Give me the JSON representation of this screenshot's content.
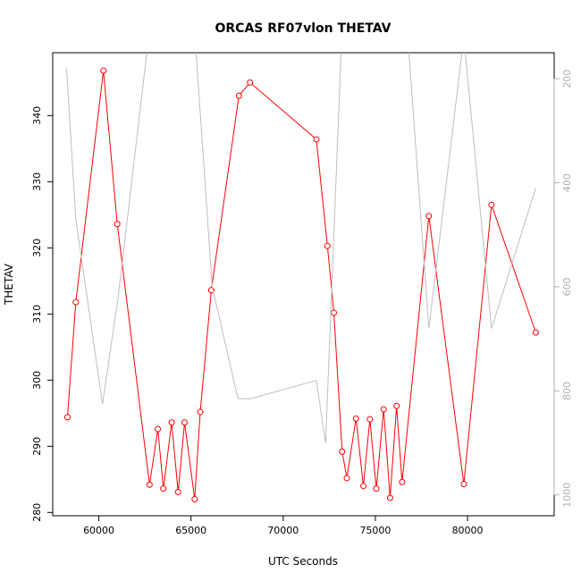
{
  "chart_data": {
    "type": "line",
    "title": "ORCAS RF07vlon THETAV",
    "xlabel": "UTC Seconds",
    "ylabel": "THETAV",
    "xlim": [
      57500,
      84700
    ],
    "ylim": [
      279.5,
      349.5
    ],
    "y2lim": [
      1040,
      150
    ],
    "x_ticks": [
      60000,
      65000,
      70000,
      75000,
      80000
    ],
    "y_ticks": [
      280,
      290,
      300,
      310,
      320,
      330,
      340
    ],
    "y2_ticks": [
      200,
      400,
      600,
      800,
      1000
    ],
    "legend": "none",
    "grid": false,
    "series": [
      {
        "axis": "left",
        "style": "line+circle-markers",
        "color": "#ff0000",
        "x": [
          58300,
          58750,
          60250,
          61000,
          62750,
          63200,
          63500,
          63950,
          64300,
          64650,
          65200,
          65500,
          66100,
          67600,
          68200,
          71800,
          72400,
          72750,
          73200,
          73450,
          73950,
          74350,
          74700,
          75050,
          75450,
          75800,
          76150,
          76450,
          77900,
          79800,
          81300,
          83700
        ],
        "y": [
          294.4,
          311.8,
          346.8,
          323.6,
          284.2,
          292.6,
          283.6,
          293.6,
          283.1,
          293.6,
          282.0,
          295.2,
          313.6,
          343.0,
          345.0,
          336.4,
          320.3,
          310.2,
          289.2,
          285.2,
          294.2,
          284.0,
          294.1,
          283.6,
          295.6,
          282.2,
          296.1,
          284.6,
          324.8,
          284.3,
          326.5,
          307.2
        ]
      },
      {
        "axis": "right",
        "style": "line",
        "color": "#bebebe",
        "x": [
          58250,
          58750,
          60200,
          61050,
          62700,
          63250,
          65200,
          66150,
          67550,
          68250,
          71800,
          72300,
          73150,
          73800,
          74400,
          75050,
          75700,
          76300,
          76800,
          77900,
          79800,
          81300,
          83700
        ],
        "y": [
          180,
          470,
          825,
          620,
          120,
          115,
          110,
          600,
          815,
          815,
          780,
          900,
          140,
          120,
          140,
          110,
          115,
          120,
          140,
          680,
          120,
          680,
          410
        ]
      }
    ]
  }
}
